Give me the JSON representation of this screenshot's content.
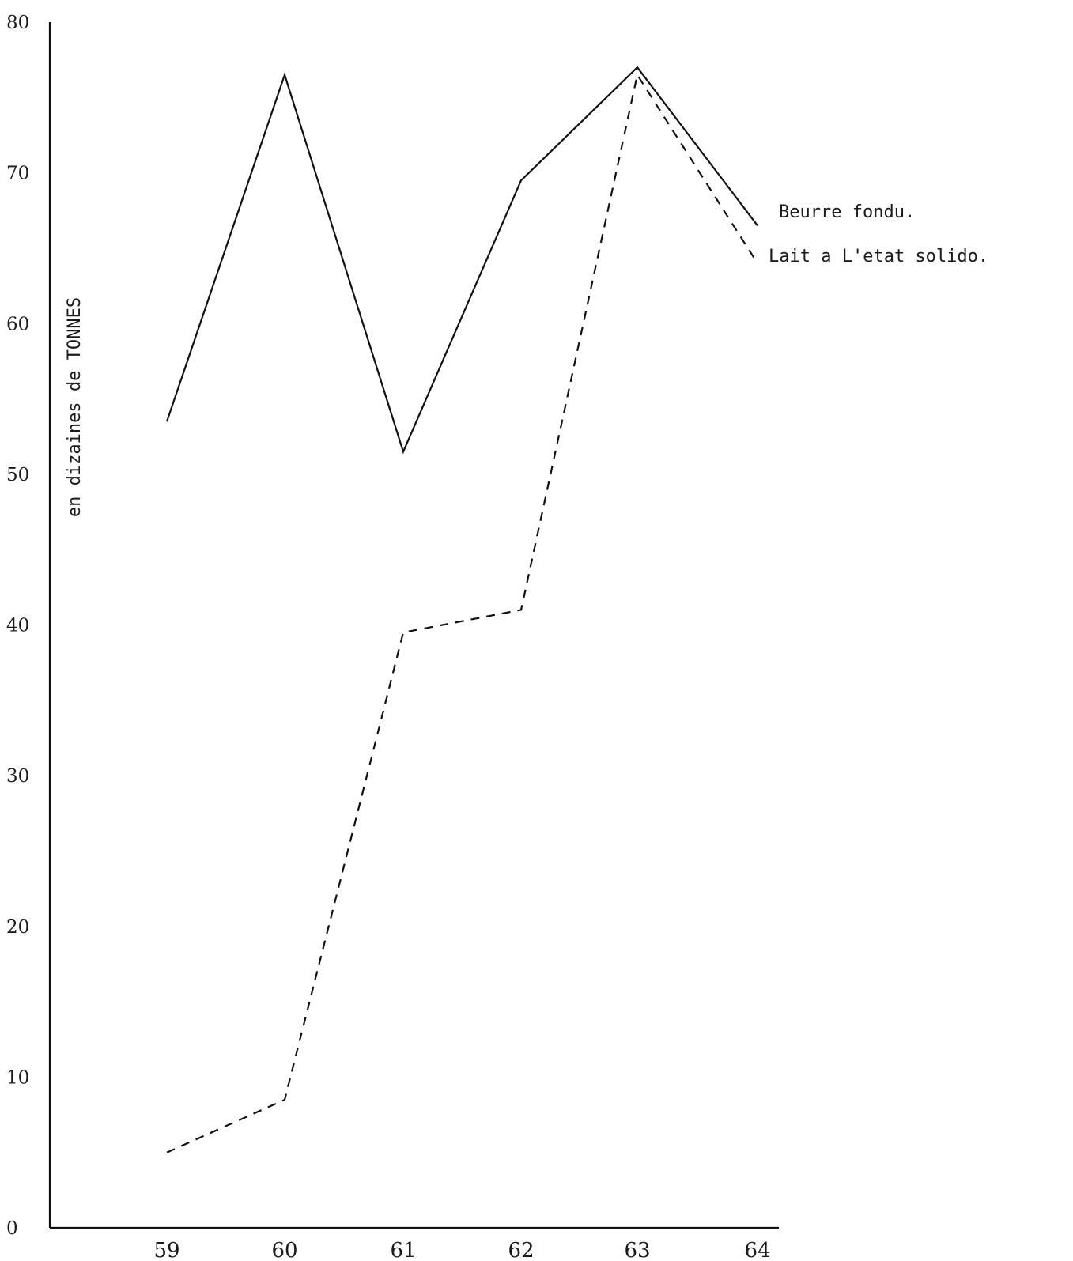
{
  "chart_data": {
    "type": "line",
    "title": "",
    "xlabel": "",
    "ylabel": "en dizaines de TONNES",
    "x": [
      "59",
      "60",
      "61",
      "62",
      "63",
      "64"
    ],
    "ylim": [
      0,
      80
    ],
    "yticks": [
      "0",
      "10",
      "20",
      "30",
      "40",
      "50",
      "60",
      "70",
      "80"
    ],
    "grid": false,
    "series": [
      {
        "name": "Beurre fondu.",
        "style": "solid",
        "color": "#111111",
        "values": [
          53.5,
          76.5,
          51.5,
          69.5,
          77,
          66.5
        ]
      },
      {
        "name": "Lait a L'etat solido.",
        "style": "dashed",
        "color": "#111111",
        "values": [
          5,
          8.5,
          39.5,
          41,
          76.5,
          64
        ]
      }
    ]
  }
}
